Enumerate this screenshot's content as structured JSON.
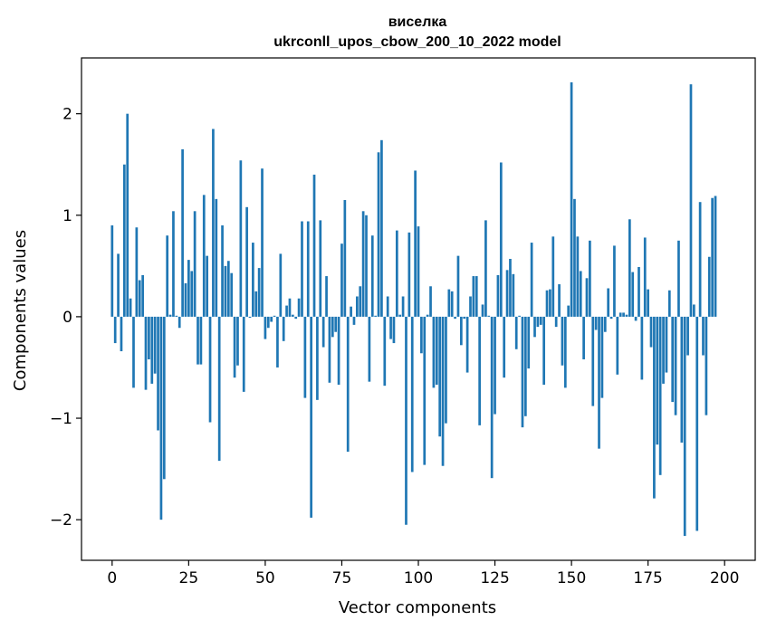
{
  "chart_data": {
    "type": "bar",
    "title": "виселка",
    "subtitle": "ukrconll_upos_cbow_200_10_2022 model",
    "xlabel": "Vector components",
    "ylabel": "Components values",
    "xlim": [
      -10,
      210
    ],
    "ylim": [
      -2.4,
      2.55
    ],
    "xticks": [
      0,
      25,
      50,
      75,
      100,
      125,
      150,
      175,
      200
    ],
    "yticks": [
      -2,
      -1,
      0,
      1,
      2
    ],
    "xtick_labels": [
      "0",
      "25",
      "50",
      "75",
      "100",
      "125",
      "150",
      "175",
      "200"
    ],
    "ytick_labels": [
      "−2",
      "−1",
      "0",
      "1",
      "2"
    ],
    "bar_color": "#1f77b4",
    "grid": false,
    "values": [
      0.9,
      -0.26,
      0.62,
      -0.34,
      1.5,
      2.0,
      0.18,
      -0.7,
      0.88,
      0.36,
      0.41,
      -0.72,
      -0.42,
      -0.66,
      -0.56,
      -1.12,
      -2.0,
      -1.6,
      0.8,
      0.02,
      1.04,
      0.01,
      -0.11,
      1.65,
      0.33,
      0.56,
      0.45,
      1.04,
      -0.47,
      -0.47,
      1.2,
      0.6,
      -1.04,
      1.85,
      1.16,
      -1.42,
      0.9,
      0.5,
      0.55,
      0.43,
      -0.6,
      -0.48,
      1.54,
      -0.74,
      1.08,
      -0.01,
      0.73,
      0.25,
      0.48,
      1.46,
      -0.22,
      -0.11,
      -0.05,
      0.01,
      -0.5,
      0.62,
      -0.24,
      0.11,
      0.18,
      0.02,
      -0.02,
      0.18,
      0.94,
      -0.8,
      0.94,
      -1.98,
      1.4,
      -0.82,
      0.95,
      -0.3,
      0.4,
      -0.65,
      -0.2,
      -0.15,
      -0.67,
      0.72,
      1.15,
      -1.33,
      0.1,
      -0.08,
      0.2,
      0.3,
      1.04,
      1.0,
      -0.64,
      0.8,
      0.01,
      1.62,
      1.74,
      -0.68,
      0.2,
      -0.22,
      -0.26,
      0.85,
      0.02,
      0.2,
      -2.05,
      0.83,
      -1.53,
      1.44,
      0.89,
      -0.36,
      -1.46,
      0.02,
      0.3,
      -0.7,
      -0.67,
      -1.18,
      -1.47,
      -1.05,
      0.27,
      0.25,
      -0.02,
      0.6,
      -0.28,
      -0.02,
      -0.55,
      0.2,
      0.4,
      0.4,
      -1.07,
      0.12,
      0.95,
      0.01,
      -1.59,
      -0.96,
      0.41,
      1.52,
      -0.6,
      0.46,
      0.57,
      0.42,
      -0.32,
      0.01,
      -1.09,
      -0.98,
      -0.51,
      0.73,
      -0.2,
      -0.1,
      -0.08,
      -0.67,
      0.26,
      0.27,
      0.79,
      -0.1,
      0.32,
      -0.48,
      -0.7,
      0.11,
      2.31,
      1.16,
      0.79,
      0.45,
      -0.42,
      0.38,
      0.75,
      -0.88,
      -0.13,
      -1.3,
      -0.8,
      -0.15,
      0.28,
      -0.02,
      0.7,
      -0.57,
      0.04,
      0.04,
      0.02,
      0.96,
      0.44,
      -0.04,
      0.49,
      -0.62,
      0.78,
      0.27,
      -0.3,
      -1.79,
      -1.26,
      -1.56,
      -0.66,
      -0.55,
      0.26,
      -0.84,
      -0.97,
      0.75,
      -1.24,
      -2.16,
      -0.38,
      2.29,
      0.12,
      -2.11,
      1.13,
      -0.38,
      -0.97,
      0.59,
      1.17,
      1.19,
      0.0,
      0.0
    ]
  }
}
